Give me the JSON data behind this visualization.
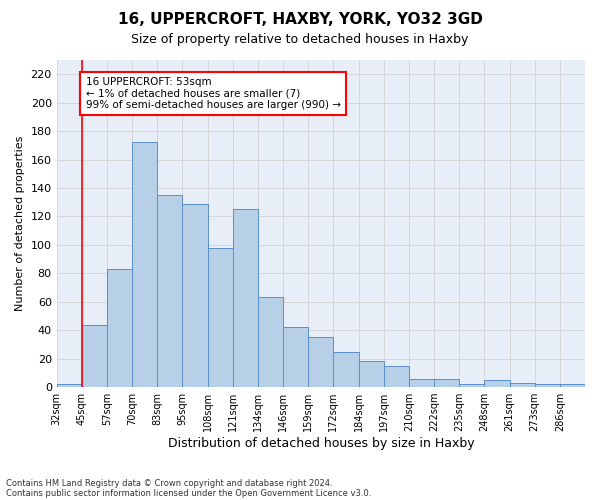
{
  "title1": "16, UPPERCROFT, HAXBY, YORK, YO32 3GD",
  "title2": "Size of property relative to detached houses in Haxby",
  "xlabel": "Distribution of detached houses by size in Haxby",
  "ylabel": "Number of detached properties",
  "footnote1": "Contains HM Land Registry data © Crown copyright and database right 2024.",
  "footnote2": "Contains public sector information licensed under the Open Government Licence v3.0.",
  "annotation_title": "16 UPPERCROFT: 53sqm",
  "annotation_line1": "← 1% of detached houses are smaller (7)",
  "annotation_line2": "99% of semi-detached houses are larger (990) →",
  "categories": [
    "32sqm",
    "45sqm",
    "57sqm",
    "70sqm",
    "83sqm",
    "95sqm",
    "108sqm",
    "121sqm",
    "134sqm",
    "146sqm",
    "159sqm",
    "172sqm",
    "184sqm",
    "197sqm",
    "210sqm",
    "222sqm",
    "235sqm",
    "248sqm",
    "261sqm",
    "273sqm",
    "286sqm"
  ],
  "bar_heights": [
    2,
    44,
    83,
    172,
    135,
    129,
    98,
    125,
    63,
    42,
    35,
    25,
    18,
    15,
    6,
    6,
    2,
    5,
    3,
    2,
    2
  ],
  "bar_color": "#b8cfe8",
  "bar_edge_color": "#5b8fc9",
  "vline_x": 1.0,
  "vline_color": "red",
  "annotation_box_color": "white",
  "annotation_box_edgecolor": "red",
  "ylim": [
    0,
    230
  ],
  "yticks": [
    0,
    20,
    40,
    60,
    80,
    100,
    120,
    140,
    160,
    180,
    200,
    220
  ],
  "grid_color": "#cccccc",
  "bg_color": "#e8eef8"
}
